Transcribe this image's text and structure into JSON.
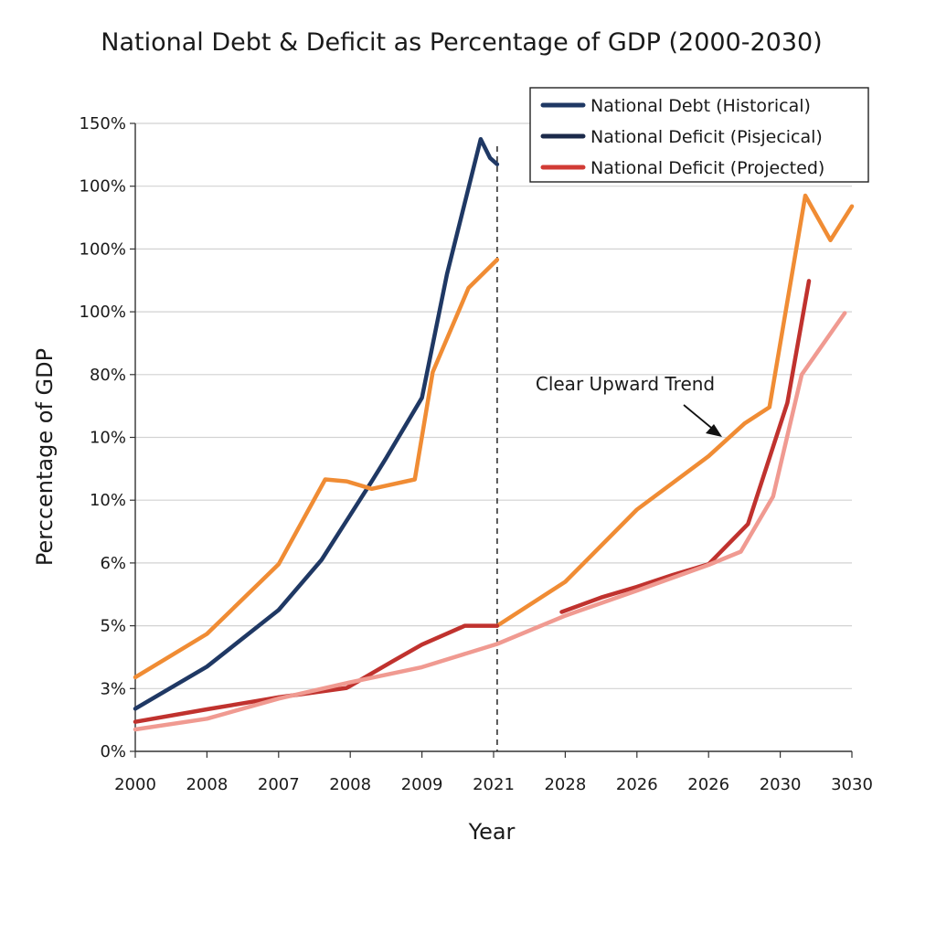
{
  "chart_data": {
    "type": "line",
    "title": "National Debt & Deficit as Percentage of GDP (2000-2030)",
    "xlabel": "Year",
    "ylabel": "Perccentage of GDP",
    "x_tick_labels": [
      "2000",
      "2008",
      "2007",
      "2008",
      "2009",
      "2021",
      "2028",
      "2026",
      "2026",
      "2030",
      "3030"
    ],
    "y_tick_labels": [
      "0%",
      "3%",
      "5%",
      "6%",
      "10%",
      "10%",
      "80%",
      "100%",
      "100%",
      "100%",
      "150%"
    ],
    "grid": true,
    "legend_position": "top-right",
    "legend": [
      {
        "label": "National Debt (Historical)",
        "color": "#1f3864"
      },
      {
        "label": "National Deficit (Pisjecical)",
        "color": "#1b2a4a"
      },
      {
        "label": "National Deficit (Projected)",
        "color": "#d13b35"
      }
    ],
    "divider_at_tick_index": 5.05,
    "annotation": {
      "text": "Clear Upward Trend",
      "points_to": [
        8.2,
        5.04
      ]
    },
    "series": [
      {
        "color": "#1f3864",
        "x": [
          0,
          1,
          2,
          2.6,
          3.3,
          3.5,
          4.0,
          4.35,
          4.82,
          4.95,
          5.05
        ],
        "y": [
          0.68,
          1.35,
          2.25,
          3.05,
          4.3,
          4.67,
          5.63,
          7.6,
          9.75,
          9.45,
          9.35
        ]
      },
      {
        "color": "#f08c34",
        "x": [
          0,
          1,
          2,
          2.65,
          2.95,
          3.3,
          3.9,
          4.15,
          4.65,
          5.05,
          5.05,
          6.0,
          7.0,
          8.0,
          8.5,
          8.85,
          9.35,
          9.7,
          10.0
        ],
        "y": [
          1.18,
          1.87,
          2.98,
          4.33,
          4.3,
          4.18,
          4.33,
          6.04,
          7.38,
          7.83,
          2.0,
          2.7,
          3.85,
          4.7,
          5.22,
          5.48,
          8.85,
          8.14,
          8.68
        ]
      },
      {
        "color": "#c0322e",
        "x": [
          0,
          1,
          2,
          2.95,
          3.6,
          4.0,
          4.6,
          5.05
        ],
        "y": [
          0.47,
          0.67,
          0.86,
          1.01,
          1.44,
          1.7,
          2.0,
          2.0
        ]
      },
      {
        "color": "#c0322e",
        "x": [
          5.95,
          6.5,
          7.0,
          7.5,
          8.0,
          8.55,
          9.1,
          9.4
        ],
        "y": [
          2.22,
          2.45,
          2.62,
          2.81,
          2.98,
          3.62,
          5.55,
          7.49
        ]
      },
      {
        "color": "#f09a91",
        "x": [
          0,
          1,
          2,
          3.0,
          4.0,
          5.05,
          6.0,
          7.0,
          8.0,
          8.45,
          8.9,
          9.3,
          9.9
        ],
        "y": [
          0.35,
          0.52,
          0.84,
          1.1,
          1.34,
          1.71,
          2.16,
          2.56,
          2.97,
          3.18,
          4.06,
          6.0,
          6.98
        ]
      }
    ]
  }
}
